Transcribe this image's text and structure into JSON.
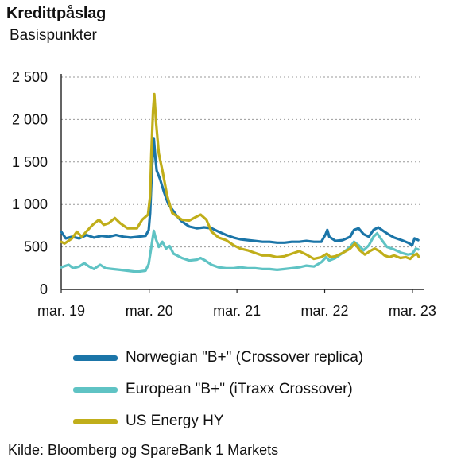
{
  "title": "Kredittpåslag",
  "subtitle": "Basispunkter",
  "source": "Kilde: Bloomberg og SpareBank 1 Markets",
  "chart_data": {
    "type": "line",
    "ylabel": "",
    "xlabel": "",
    "ylim": [
      0,
      2500
    ],
    "yticks": [
      0,
      500,
      1000,
      1500,
      2000,
      2500
    ],
    "ytick_labels": [
      "0",
      "500",
      "1 000",
      "1 500",
      "2 000",
      "2 500"
    ],
    "xlim": [
      "2019-03-01",
      "2023-03-31"
    ],
    "xticks": [
      "2019-03-01",
      "2020-03-01",
      "2021-03-01",
      "2022-03-01",
      "2023-03-01"
    ],
    "xtick_labels": [
      "mar. 19",
      "mar. 20",
      "mar. 21",
      "mar. 22",
      "mar. 23"
    ],
    "grid": "horizontal-dotted",
    "legend": "bottom",
    "series": [
      {
        "name": "Norwegian \"B+\" (Crossover replica)",
        "color": "#1b75a8",
        "points": [
          [
            "2019-03-01",
            680
          ],
          [
            "2019-03-20",
            600
          ],
          [
            "2019-04-15",
            620
          ],
          [
            "2019-05-15",
            600
          ],
          [
            "2019-06-15",
            640
          ],
          [
            "2019-07-15",
            610
          ],
          [
            "2019-08-15",
            630
          ],
          [
            "2019-09-15",
            620
          ],
          [
            "2019-10-15",
            640
          ],
          [
            "2019-11-15",
            620
          ],
          [
            "2019-12-15",
            610
          ],
          [
            "2020-01-15",
            620
          ],
          [
            "2020-02-15",
            630
          ],
          [
            "2020-02-28",
            700
          ],
          [
            "2020-03-05",
            900
          ],
          [
            "2020-03-12",
            1400
          ],
          [
            "2020-03-20",
            1780
          ],
          [
            "2020-03-25",
            1600
          ],
          [
            "2020-04-01",
            1400
          ],
          [
            "2020-04-15",
            1300
          ],
          [
            "2020-05-01",
            1150
          ],
          [
            "2020-05-20",
            1000
          ],
          [
            "2020-06-10",
            920
          ],
          [
            "2020-06-25",
            860
          ],
          [
            "2020-07-15",
            800
          ],
          [
            "2020-08-15",
            740
          ],
          [
            "2020-09-15",
            720
          ],
          [
            "2020-10-15",
            730
          ],
          [
            "2020-11-15",
            720
          ],
          [
            "2020-12-15",
            680
          ],
          [
            "2021-01-15",
            640
          ],
          [
            "2021-02-15",
            610
          ],
          [
            "2021-03-15",
            590
          ],
          [
            "2021-04-15",
            580
          ],
          [
            "2021-05-15",
            570
          ],
          [
            "2021-06-15",
            560
          ],
          [
            "2021-07-15",
            560
          ],
          [
            "2021-08-15",
            550
          ],
          [
            "2021-09-15",
            550
          ],
          [
            "2021-10-15",
            560
          ],
          [
            "2021-11-15",
            560
          ],
          [
            "2021-12-15",
            570
          ],
          [
            "2022-01-15",
            560
          ],
          [
            "2022-02-15",
            560
          ],
          [
            "2022-03-05",
            650
          ],
          [
            "2022-03-12",
            700
          ],
          [
            "2022-03-20",
            620
          ],
          [
            "2022-04-15",
            570
          ],
          [
            "2022-05-15",
            580
          ],
          [
            "2022-06-15",
            620
          ],
          [
            "2022-07-01",
            700
          ],
          [
            "2022-07-20",
            720
          ],
          [
            "2022-08-10",
            650
          ],
          [
            "2022-09-01",
            620
          ],
          [
            "2022-09-20",
            700
          ],
          [
            "2022-10-10",
            730
          ],
          [
            "2022-10-30",
            690
          ],
          [
            "2022-11-20",
            650
          ],
          [
            "2022-12-15",
            610
          ],
          [
            "2023-01-15",
            580
          ],
          [
            "2023-02-10",
            550
          ],
          [
            "2023-02-28",
            520
          ],
          [
            "2023-03-10",
            600
          ],
          [
            "2023-03-25",
            580
          ]
        ]
      },
      {
        "name": "European \"B+\" (iTraxx Crossover)",
        "color": "#5fc3c4",
        "points": [
          [
            "2019-03-01",
            260
          ],
          [
            "2019-04-01",
            290
          ],
          [
            "2019-04-20",
            250
          ],
          [
            "2019-05-15",
            270
          ],
          [
            "2019-06-05",
            310
          ],
          [
            "2019-06-25",
            270
          ],
          [
            "2019-07-15",
            240
          ],
          [
            "2019-08-10",
            290
          ],
          [
            "2019-09-01",
            250
          ],
          [
            "2019-10-01",
            240
          ],
          [
            "2019-11-01",
            230
          ],
          [
            "2019-12-01",
            220
          ],
          [
            "2020-01-01",
            210
          ],
          [
            "2020-01-20",
            210
          ],
          [
            "2020-02-15",
            220
          ],
          [
            "2020-02-28",
            300
          ],
          [
            "2020-03-10",
            500
          ],
          [
            "2020-03-20",
            690
          ],
          [
            "2020-03-28",
            600
          ],
          [
            "2020-04-10",
            500
          ],
          [
            "2020-04-25",
            560
          ],
          [
            "2020-05-10",
            480
          ],
          [
            "2020-05-25",
            510
          ],
          [
            "2020-06-10",
            420
          ],
          [
            "2020-06-25",
            400
          ],
          [
            "2020-07-15",
            370
          ],
          [
            "2020-08-15",
            340
          ],
          [
            "2020-09-15",
            350
          ],
          [
            "2020-10-01",
            370
          ],
          [
            "2020-10-20",
            340
          ],
          [
            "2020-11-15",
            290
          ],
          [
            "2020-12-15",
            260
          ],
          [
            "2021-01-15",
            250
          ],
          [
            "2021-02-15",
            250
          ],
          [
            "2021-03-15",
            260
          ],
          [
            "2021-04-15",
            250
          ],
          [
            "2021-05-15",
            250
          ],
          [
            "2021-06-15",
            240
          ],
          [
            "2021-07-15",
            240
          ],
          [
            "2021-08-15",
            230
          ],
          [
            "2021-09-15",
            240
          ],
          [
            "2021-10-15",
            250
          ],
          [
            "2021-11-15",
            260
          ],
          [
            "2021-12-15",
            280
          ],
          [
            "2022-01-15",
            270
          ],
          [
            "2022-02-15",
            320
          ],
          [
            "2022-03-07",
            380
          ],
          [
            "2022-03-20",
            340
          ],
          [
            "2022-04-15",
            370
          ],
          [
            "2022-05-15",
            430
          ],
          [
            "2022-06-15",
            500
          ],
          [
            "2022-07-01",
            560
          ],
          [
            "2022-07-20",
            520
          ],
          [
            "2022-08-10",
            460
          ],
          [
            "2022-09-01",
            520
          ],
          [
            "2022-09-20",
            620
          ],
          [
            "2022-10-05",
            660
          ],
          [
            "2022-10-25",
            580
          ],
          [
            "2022-11-15",
            500
          ],
          [
            "2022-12-15",
            470
          ],
          [
            "2023-01-15",
            430
          ],
          [
            "2023-02-10",
            410
          ],
          [
            "2023-03-01",
            420
          ],
          [
            "2023-03-15",
            480
          ],
          [
            "2023-03-25",
            470
          ]
        ]
      },
      {
        "name": "US Energy HY",
        "color": "#c0ae1a",
        "points": [
          [
            "2019-03-01",
            560
          ],
          [
            "2019-03-15",
            540
          ],
          [
            "2019-04-15",
            600
          ],
          [
            "2019-05-05",
            680
          ],
          [
            "2019-05-25",
            620
          ],
          [
            "2019-06-20",
            700
          ],
          [
            "2019-07-10",
            760
          ],
          [
            "2019-08-05",
            820
          ],
          [
            "2019-08-25",
            760
          ],
          [
            "2019-09-15",
            780
          ],
          [
            "2019-10-10",
            840
          ],
          [
            "2019-11-01",
            780
          ],
          [
            "2019-12-01",
            720
          ],
          [
            "2020-01-10",
            720
          ],
          [
            "2020-02-01",
            820
          ],
          [
            "2020-02-25",
            880
          ],
          [
            "2020-03-05",
            1100
          ],
          [
            "2020-03-10",
            1600
          ],
          [
            "2020-03-17",
            2100
          ],
          [
            "2020-03-22",
            2300
          ],
          [
            "2020-03-30",
            1950
          ],
          [
            "2020-04-10",
            1600
          ],
          [
            "2020-04-25",
            1400
          ],
          [
            "2020-05-15",
            1100
          ],
          [
            "2020-06-05",
            900
          ],
          [
            "2020-06-25",
            860
          ],
          [
            "2020-07-15",
            820
          ],
          [
            "2020-08-15",
            810
          ],
          [
            "2020-09-10",
            850
          ],
          [
            "2020-10-01",
            880
          ],
          [
            "2020-10-25",
            820
          ],
          [
            "2020-11-15",
            680
          ],
          [
            "2020-12-15",
            610
          ],
          [
            "2021-01-15",
            580
          ],
          [
            "2021-02-15",
            520
          ],
          [
            "2021-03-15",
            480
          ],
          [
            "2021-04-15",
            460
          ],
          [
            "2021-05-15",
            430
          ],
          [
            "2021-06-15",
            400
          ],
          [
            "2021-07-15",
            400
          ],
          [
            "2021-08-15",
            380
          ],
          [
            "2021-09-15",
            390
          ],
          [
            "2021-10-15",
            420
          ],
          [
            "2021-11-15",
            450
          ],
          [
            "2021-12-15",
            410
          ],
          [
            "2022-01-15",
            360
          ],
          [
            "2022-02-15",
            380
          ],
          [
            "2022-03-10",
            420
          ],
          [
            "2022-03-25",
            380
          ],
          [
            "2022-04-15",
            390
          ],
          [
            "2022-05-15",
            430
          ],
          [
            "2022-06-15",
            480
          ],
          [
            "2022-07-05",
            540
          ],
          [
            "2022-07-25",
            460
          ],
          [
            "2022-08-15",
            410
          ],
          [
            "2022-09-05",
            450
          ],
          [
            "2022-09-25",
            480
          ],
          [
            "2022-10-15",
            450
          ],
          [
            "2022-11-05",
            400
          ],
          [
            "2022-11-25",
            380
          ],
          [
            "2022-12-15",
            400
          ],
          [
            "2023-01-10",
            370
          ],
          [
            "2023-02-01",
            380
          ],
          [
            "2023-02-20",
            360
          ],
          [
            "2023-03-05",
            400
          ],
          [
            "2023-03-20",
            420
          ],
          [
            "2023-03-28",
            380
          ]
        ]
      }
    ]
  }
}
